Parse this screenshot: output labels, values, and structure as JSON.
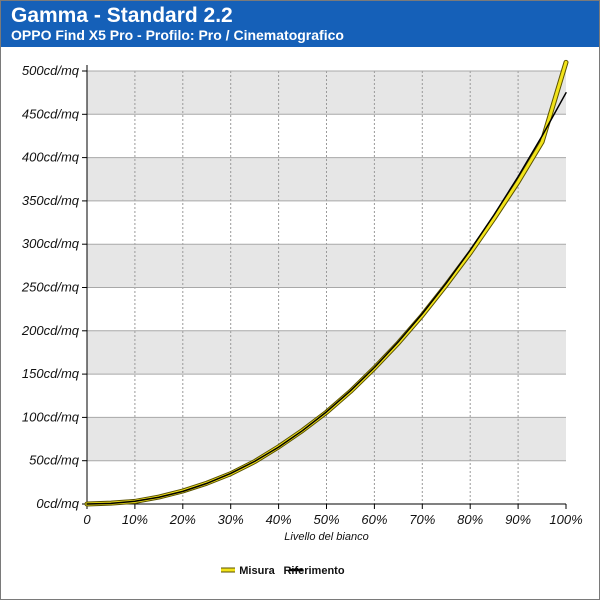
{
  "header": {
    "title": "Gamma - Standard 2.2",
    "subtitle": "OPPO Find X5 Pro - Profilo: Pro / Cinematografico"
  },
  "colors": {
    "header_bg": "#1560b8",
    "band_light": "#ffffff",
    "band_dark": "#e6e6e6",
    "measured": "#f2e31a",
    "reference": "#000000"
  },
  "chart_data": {
    "type": "line",
    "xlabel": "Livello del bianco",
    "ylabel": "",
    "xlim": [
      0,
      100
    ],
    "ylim": [
      0,
      500
    ],
    "x_ticks": [
      "0",
      "10%",
      "20%",
      "30%",
      "40%",
      "50%",
      "60%",
      "70%",
      "80%",
      "90%",
      "100%"
    ],
    "y_ticks": [
      "0cd/mq",
      "50cd/mq",
      "100cd/mq",
      "150cd/mq",
      "200cd/mq",
      "250cd/mq",
      "300cd/mq",
      "350cd/mq",
      "400cd/mq",
      "450cd/mq",
      "500cd/mq"
    ],
    "x": [
      0,
      5,
      10,
      15,
      20,
      25,
      30,
      35,
      40,
      45,
      50,
      55,
      60,
      65,
      70,
      75,
      80,
      85,
      90,
      95,
      100
    ],
    "series": [
      {
        "name": "Misura",
        "color": "#f2e31a",
        "values": [
          0,
          1,
          3,
          8,
          15,
          24,
          35,
          49,
          66,
          85,
          106,
          130,
          157,
          186,
          218,
          253,
          290,
          330,
          372,
          418,
          510
        ]
      },
      {
        "name": "Riferimento",
        "color": "#000000",
        "values": [
          0,
          0.7,
          3.2,
          7.8,
          14.6,
          23.8,
          35.3,
          49.2,
          65.7,
          84.8,
          106.4,
          130.7,
          157.6,
          187.3,
          219.7,
          255.0,
          293.1,
          334.1,
          378.0,
          424.9,
          474.8
        ]
      }
    ],
    "legend_position": "bottom-center",
    "grid": true
  }
}
